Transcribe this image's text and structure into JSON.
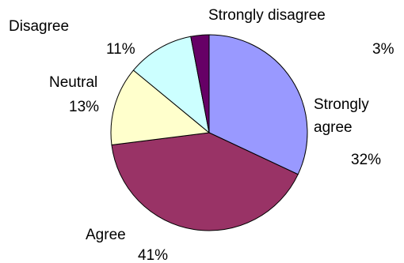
{
  "chart_data": {
    "type": "pie",
    "title": "",
    "start_angle_deg": 0,
    "direction": "clockwise",
    "slices": [
      {
        "label": "Strongly agree",
        "value": 32,
        "value_label": "32%",
        "color": "#9999ff"
      },
      {
        "label": "Agree",
        "value": 41,
        "value_label": "41%",
        "color": "#993366"
      },
      {
        "label": "Neutral",
        "value": 13,
        "value_label": "13%",
        "color": "#ffffcc"
      },
      {
        "label": "Disagree",
        "value": 11,
        "value_label": "11%",
        "color": "#ccffff"
      },
      {
        "label": "Strongly disagree",
        "value": 3,
        "value_label": "3%",
        "color": "#660066"
      }
    ]
  }
}
